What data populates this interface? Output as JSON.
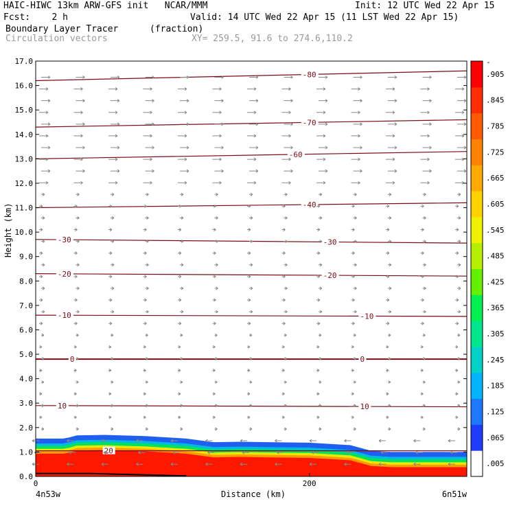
{
  "header": {
    "line1_left": "HAIC-HIWC 13km ARW-GFS init   NCAR/MMM",
    "line1_right": "Init: 12 UTC Wed 22 Apr 15",
    "line2_left": "Fcst:    2 h",
    "line2_right": "Valid: 14 UTC Wed 22 Apr 15 (11 LST Wed 22 Apr 15)",
    "line3_left": "Boundary Layer Tracer",
    "line3_units": "(fraction)",
    "line4_left": "Circulation vectors",
    "line4_right": "XY= 259.5, 91.6 to 274.6,110.2"
  },
  "chart_data": {
    "type": "heatmap",
    "xlabel": "Distance (km)",
    "ylabel": "Height (km)",
    "xlim": [
      0,
      315
    ],
    "ylim": [
      0,
      17
    ],
    "x_ticks": [
      0,
      200
    ],
    "x_tick_labels": [
      "0",
      "200"
    ],
    "x_end_labels": [
      "4n53w",
      "6n51w"
    ],
    "y_ticks": [
      0,
      1,
      2,
      3,
      4,
      5,
      6,
      7,
      8,
      9,
      10,
      11,
      12,
      13,
      14,
      15,
      16,
      17
    ],
    "y_tick_labels": [
      "0.0",
      "1.0",
      "2.0",
      "3.0",
      "4.0",
      "5.0",
      "6.0",
      "7.0",
      "8.0",
      "9.0",
      "10.0",
      "11.0",
      "12.0",
      "13.0",
      "14.0",
      "15.0",
      "16.0",
      "17.0"
    ],
    "tracer_top_km": [
      [
        0,
        1.55
      ],
      [
        20,
        1.55
      ],
      [
        25,
        1.6
      ],
      [
        30,
        1.68
      ],
      [
        50,
        1.7
      ],
      [
        80,
        1.65
      ],
      [
        110,
        1.55
      ],
      [
        130,
        1.4
      ],
      [
        150,
        1.42
      ],
      [
        170,
        1.4
      ],
      [
        200,
        1.38
      ],
      [
        230,
        1.28
      ],
      [
        245,
        1.05
      ],
      [
        260,
        1.0
      ],
      [
        315,
        1.0
      ]
    ],
    "tracer_layers": [
      {
        "value": 0.065,
        "color": "#1f5ff0",
        "top_offset_km": 0.0
      },
      {
        "value": 0.125,
        "color": "#00b8e0",
        "top_offset_km": -0.2
      },
      {
        "value": 0.245,
        "color": "#00e060",
        "top_offset_km": -0.3
      },
      {
        "value": 0.425,
        "color": "#e8e800",
        "top_offset_km": -0.42
      },
      {
        "value": 0.605,
        "color": "#ff9a00",
        "top_offset_km": -0.52
      },
      {
        "value": 0.905,
        "color": "#ff1800",
        "top_offset_km": -0.62
      }
    ],
    "isotherms": [
      {
        "label": "20",
        "y0": 1.05,
        "y1": 1.05,
        "label_x": 50
      },
      {
        "label": "10",
        "y0": 2.9,
        "y1": 2.85,
        "label_x": 16,
        "label_x2": 237
      },
      {
        "label": "0",
        "y0": 4.8,
        "y1": 4.8,
        "label_x": 25,
        "label_x2": 237
      },
      {
        "label": "-10",
        "y0": 6.6,
        "y1": 6.55,
        "label_x": 16,
        "label_x2": 237
      },
      {
        "label": "-20",
        "y0": 8.3,
        "y1": 8.2,
        "label_x": 16,
        "label_x2": 210
      },
      {
        "label": "-30",
        "y0": 9.7,
        "y1": 9.55,
        "label_x": 16,
        "label_x2": 210
      },
      {
        "label": "-40",
        "y0": 11.0,
        "y1": 11.2,
        "label_x2": 195
      },
      {
        "label": "-60",
        "y0": 13.0,
        "y1": 13.3,
        "label_x2": 185
      },
      {
        "label": "-70",
        "y0": 14.3,
        "y1": 14.6,
        "label_x2": 195
      },
      {
        "label": "-80",
        "y0": 16.2,
        "y1": 16.6,
        "label_x2": 195
      }
    ],
    "colorbar": {
      "labels": [
        ".905",
        ".845",
        ".785",
        ".725",
        ".665",
        ".605",
        ".545",
        ".485",
        ".425",
        ".365",
        ".305",
        ".245",
        ".185",
        ".125",
        ".065",
        ".005"
      ],
      "label_values": [
        0.905,
        0.845,
        0.785,
        0.725,
        0.665,
        0.605,
        0.545,
        0.485,
        0.425,
        0.365,
        0.305,
        0.245,
        0.185,
        0.125,
        0.065,
        0.005
      ],
      "top_label": "-",
      "colors": [
        "#ffffff",
        "#1e3cff",
        "#1e78ff",
        "#00b4ff",
        "#00d2c8",
        "#00e68c",
        "#00f050",
        "#64f000",
        "#b4f000",
        "#f0f000",
        "#ffd200",
        "#ffaa00",
        "#ff8200",
        "#ff5a00",
        "#ff2d00",
        "#ff0000"
      ]
    }
  }
}
